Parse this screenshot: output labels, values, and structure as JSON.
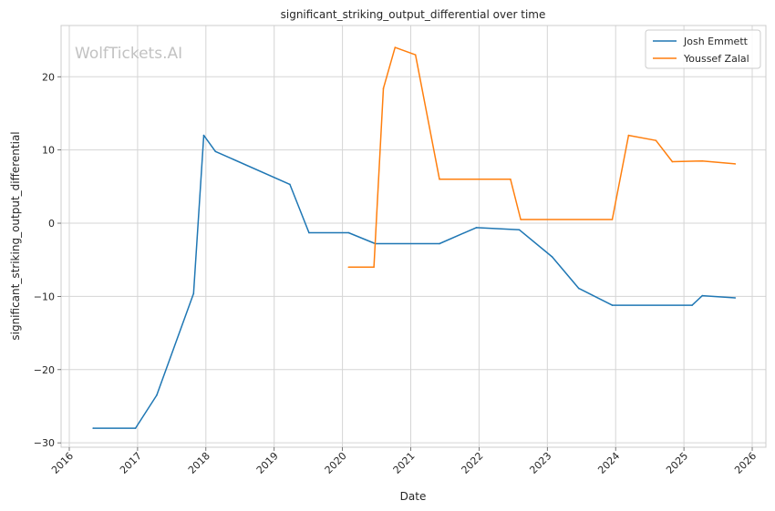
{
  "chart_data": {
    "type": "line",
    "title": "significant_striking_output_differential over time",
    "xlabel": "Date",
    "ylabel": "significant_striking_output_differential",
    "watermark": "WolfTickets.AI",
    "xlim": [
      2015.88,
      2026.2
    ],
    "ylim": [
      -30.6,
      27
    ],
    "x_ticks": [
      "2016",
      "2017",
      "2018",
      "2019",
      "2020",
      "2021",
      "2022",
      "2023",
      "2024",
      "2025",
      "2026"
    ],
    "y_ticks": [
      {
        "value": -30,
        "label": "−30"
      },
      {
        "value": -20,
        "label": "−20"
      },
      {
        "value": -10,
        "label": "−10"
      },
      {
        "value": 0,
        "label": "0"
      },
      {
        "value": 10,
        "label": "10"
      },
      {
        "value": 20,
        "label": "20"
      }
    ],
    "grid": true,
    "legend_position": "top-right",
    "series": [
      {
        "name": "Josh Emmett",
        "color": "#1f77b4",
        "points": [
          [
            2016.35,
            -28
          ],
          [
            2016.97,
            -28
          ],
          [
            2017.28,
            -23.5
          ],
          [
            2017.82,
            -9.6
          ],
          [
            2017.97,
            12
          ],
          [
            2018.14,
            9.8
          ],
          [
            2019.23,
            5.3
          ],
          [
            2019.51,
            -1.3
          ],
          [
            2020.09,
            -1.3
          ],
          [
            2020.48,
            -2.8
          ],
          [
            2021.42,
            -2.8
          ],
          [
            2021.96,
            -0.6
          ],
          [
            2022.59,
            -0.9
          ],
          [
            2023.07,
            -4.6
          ],
          [
            2023.46,
            -8.9
          ],
          [
            2023.95,
            -11.2
          ],
          [
            2025.12,
            -11.2
          ],
          [
            2025.27,
            -9.9
          ],
          [
            2025.75,
            -10.2
          ]
        ]
      },
      {
        "name": "Youssef Zalal",
        "color": "#ff7f0e",
        "points": [
          [
            2020.09,
            -6
          ],
          [
            2020.46,
            -6
          ],
          [
            2020.6,
            18.4
          ],
          [
            2020.77,
            24
          ],
          [
            2021.07,
            23
          ],
          [
            2021.42,
            6
          ],
          [
            2022.46,
            6
          ],
          [
            2022.61,
            0.5
          ],
          [
            2023.95,
            0.5
          ],
          [
            2024.19,
            12
          ],
          [
            2024.59,
            11.3
          ],
          [
            2024.83,
            8.4
          ],
          [
            2025.27,
            8.5
          ],
          [
            2025.75,
            8.1
          ]
        ]
      }
    ]
  }
}
